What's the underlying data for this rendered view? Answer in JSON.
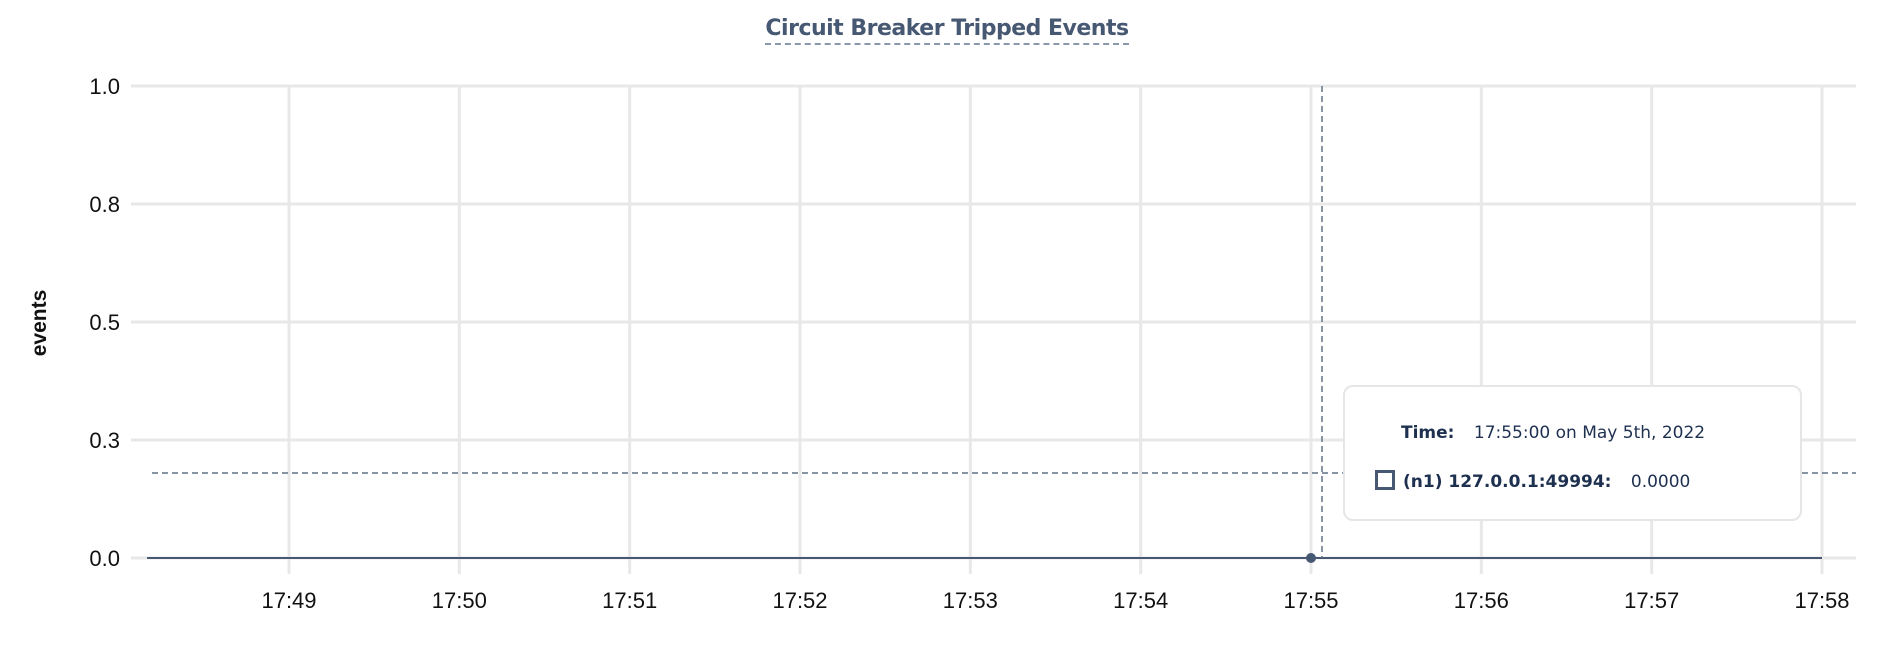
{
  "chart_data": {
    "type": "line",
    "title": "Circuit Breaker Tripped Events",
    "ylabel": "events",
    "xlabel": "",
    "ylim": [
      0,
      1.0
    ],
    "y_ticks": [
      "0.0",
      "0.3",
      "0.5",
      "0.8",
      "1.0"
    ],
    "y_tick_values": [
      0,
      0.25,
      0.5,
      0.75,
      1.0
    ],
    "x_ticks": [
      "17:49",
      "17:50",
      "17:51",
      "17:52",
      "17:53",
      "17:54",
      "17:55",
      "17:56",
      "17:57",
      "17:58"
    ],
    "xlim": [
      "17:48:10",
      "17:58:15"
    ],
    "grid": true,
    "series": [
      {
        "name": "(n1) 127.0.0.1:49994",
        "color": "#475872",
        "x": [
          "17:48:10",
          "17:49:00",
          "17:50:00",
          "17:51:00",
          "17:52:00",
          "17:53:00",
          "17:54:00",
          "17:55:00",
          "17:56:00",
          "17:57:00",
          "17:58:00"
        ],
        "y": [
          0,
          0,
          0,
          0,
          0,
          0,
          0,
          0,
          0,
          0,
          0
        ]
      }
    ],
    "hover": {
      "x": "17:55:00",
      "y_crosshair": 0.18
    }
  },
  "tooltip": {
    "time_label": "Time:",
    "time_value": "17:55:00 on May 5th, 2022",
    "series_label": "(n1) 127.0.0.1:49994:",
    "series_value": "0.0000"
  },
  "colors": {
    "series": "#475872",
    "grid": "#e8e8e8",
    "crosshair": "#5f7186",
    "text": "#1e3050"
  }
}
